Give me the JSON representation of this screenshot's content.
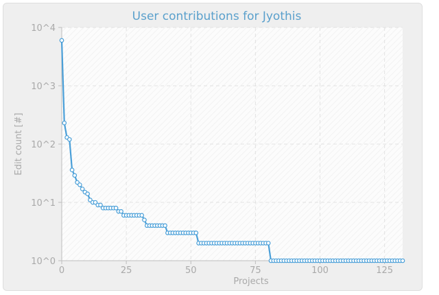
{
  "chart_data": {
    "type": "line",
    "title": "User contributions for Jyothis",
    "xlabel": "Projects",
    "ylabel": "Edit count [#]",
    "x_scale": "linear",
    "y_scale": "log",
    "xlim": [
      0,
      132
    ],
    "ylim": [
      1,
      10000
    ],
    "x_ticks": [
      "0",
      "25",
      "50",
      "75",
      "100",
      "125"
    ],
    "y_ticks": [
      "10^0",
      "10^1",
      "10^2",
      "10^3",
      "10^4"
    ],
    "grid": true,
    "legend": "none",
    "series": [
      {
        "color": "#4a9fd8",
        "x": [
          0,
          1,
          2,
          3,
          4,
          5,
          6,
          7,
          8,
          9,
          10,
          11,
          12,
          13,
          14,
          15,
          16,
          17,
          18,
          19,
          20,
          21,
          22,
          23,
          24,
          25,
          26,
          27,
          28,
          29,
          30,
          31,
          32,
          33,
          34,
          35,
          36,
          37,
          38,
          39,
          40,
          41,
          42,
          43,
          44,
          45,
          46,
          47,
          48,
          49,
          50,
          51,
          52,
          53,
          54,
          55,
          56,
          57,
          58,
          59,
          60,
          61,
          62,
          63,
          64,
          65,
          66,
          67,
          68,
          69,
          70,
          71,
          72,
          73,
          74,
          75,
          76,
          77,
          78,
          79,
          80,
          81,
          82,
          83,
          84,
          85,
          86,
          87,
          88,
          89,
          90,
          91,
          92,
          93,
          94,
          95,
          96,
          97,
          98,
          99,
          100,
          101,
          102,
          103,
          104,
          105,
          106,
          107,
          108,
          109,
          110,
          111,
          112,
          113,
          114,
          115,
          116,
          117,
          118,
          119,
          120,
          121,
          122,
          123,
          124,
          125,
          126,
          127,
          128,
          129,
          130,
          131,
          132
        ],
        "values": [
          6000,
          230,
          130,
          120,
          36,
          29,
          22,
          20,
          17,
          15,
          14,
          11,
          10,
          10,
          9,
          9,
          8,
          8,
          8,
          8,
          8,
          8,
          7,
          7,
          6,
          6,
          6,
          6,
          6,
          6,
          6,
          6,
          5,
          4,
          4,
          4,
          4,
          4,
          4,
          4,
          4,
          3,
          3,
          3,
          3,
          3,
          3,
          3,
          3,
          3,
          3,
          3,
          3,
          2,
          2,
          2,
          2,
          2,
          2,
          2,
          2,
          2,
          2,
          2,
          2,
          2,
          2,
          2,
          2,
          2,
          2,
          2,
          2,
          2,
          2,
          2,
          2,
          2,
          2,
          2,
          2,
          1,
          1,
          1,
          1,
          1,
          1,
          1,
          1,
          1,
          1,
          1,
          1,
          1,
          1,
          1,
          1,
          1,
          1,
          1,
          1,
          1,
          1,
          1,
          1,
          1,
          1,
          1,
          1,
          1,
          1,
          1,
          1,
          1,
          1,
          1,
          1,
          1,
          1,
          1,
          1,
          1,
          1,
          1,
          1,
          1,
          1,
          1,
          1,
          1,
          1,
          1,
          1
        ]
      }
    ]
  }
}
